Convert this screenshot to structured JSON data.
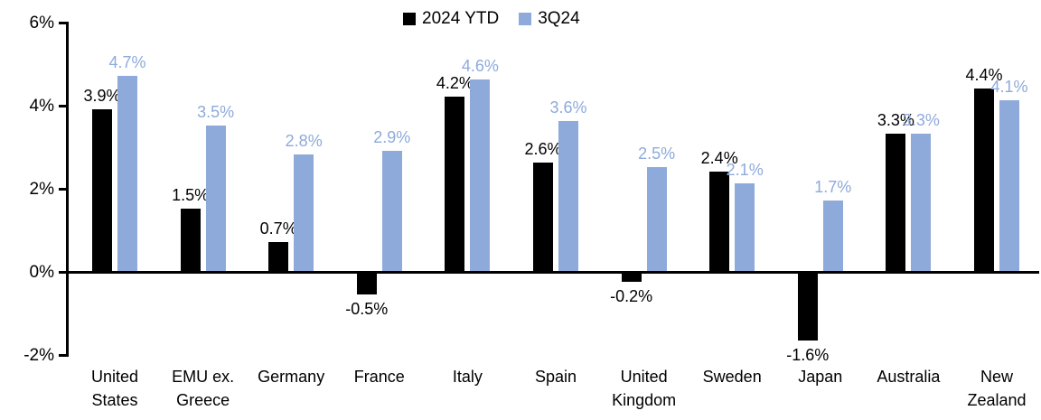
{
  "chart_data": {
    "type": "bar",
    "title": "",
    "categories": [
      "United States",
      "EMU ex. Greece",
      "Germany",
      "France",
      "Italy",
      "Spain",
      "United Kingdom",
      "Sweden",
      "Japan",
      "Australia",
      "New Zealand"
    ],
    "series": [
      {
        "name": "2024 YTD",
        "color": "#000000",
        "values": [
          3.9,
          1.5,
          0.7,
          -0.5,
          4.2,
          2.6,
          -0.2,
          2.4,
          -1.6,
          3.3,
          4.4
        ],
        "labels": [
          "3.9%",
          "1.5%",
          "0.7%",
          "-0.5%",
          "4.2%",
          "2.6%",
          "-0.2%",
          "2.4%",
          "-1.6%",
          "3.3%",
          "4.4%"
        ]
      },
      {
        "name": "3Q24",
        "color": "#8EAADB",
        "values": [
          4.7,
          3.5,
          2.8,
          2.9,
          4.6,
          3.6,
          2.5,
          2.1,
          1.7,
          3.3,
          4.1
        ],
        "labels": [
          "4.7%",
          "3.5%",
          "2.8%",
          "2.9%",
          "4.6%",
          "3.6%",
          "2.5%",
          "2.1%",
          "1.7%",
          "3.3%",
          "4.1%"
        ]
      }
    ],
    "y_axis": {
      "ylim": [
        -2,
        6
      ],
      "ticks": [
        {
          "value": 6,
          "label": "6%"
        },
        {
          "value": 4,
          "label": "4%"
        },
        {
          "value": 2,
          "label": "2%"
        },
        {
          "value": 0,
          "label": "0%"
        },
        {
          "value": -2,
          "label": "-2%"
        }
      ]
    },
    "grid": false,
    "legend_position": "top-center",
    "value_labels_shown": true
  }
}
